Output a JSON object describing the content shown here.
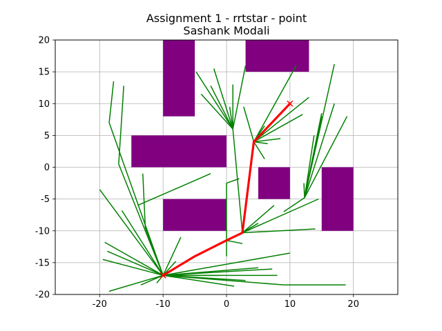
{
  "chart_data": {
    "type": "line",
    "title": "Assignment 1 - rrtstar - point",
    "subtitle": "Sashank Modali",
    "xlim": [
      -27,
      27
    ],
    "ylim": [
      -20,
      20
    ],
    "x_ticks": [
      -20,
      -10,
      0,
      10,
      20
    ],
    "y_ticks": [
      -20,
      -15,
      -10,
      -5,
      0,
      5,
      10,
      15,
      20
    ],
    "grid": true,
    "colors": {
      "obstacle": "#800080",
      "tree": "#008000",
      "path": "#ff0000",
      "grid": "#b0b0b0"
    },
    "obstacles": [
      {
        "x": [
          -10,
          -5
        ],
        "y": [
          8,
          20
        ]
      },
      {
        "x": [
          -15,
          0
        ],
        "y": [
          0,
          5
        ]
      },
      {
        "x": [
          -10,
          0
        ],
        "y": [
          -10,
          -5
        ]
      },
      {
        "x": [
          3,
          13
        ],
        "y": [
          15,
          20
        ]
      },
      {
        "x": [
          5,
          10
        ],
        "y": [
          -5,
          0
        ]
      },
      {
        "x": [
          15,
          20
        ],
        "y": [
          -10,
          0
        ]
      }
    ],
    "start": {
      "x": -10,
      "y": -17
    },
    "goal": {
      "x": 10,
      "y": 10
    },
    "path": [
      [
        -10,
        -17
      ],
      [
        -5,
        -14
      ],
      [
        0,
        -11.5
      ],
      [
        2.5,
        -10.3
      ],
      [
        4.3,
        4
      ],
      [
        10,
        10
      ]
    ],
    "tree_edges": [
      [
        [
          -10,
          -17
        ],
        [
          -18.5,
          7
        ]
      ],
      [
        [
          -18.5,
          7
        ],
        [
          -17.8,
          13.5
        ]
      ],
      [
        [
          -10,
          -17
        ],
        [
          -17,
          0.5
        ]
      ],
      [
        [
          -17,
          0.5
        ],
        [
          -16.2,
          12.8
        ]
      ],
      [
        [
          -10,
          -17
        ],
        [
          -20,
          -3.5
        ]
      ],
      [
        [
          -10,
          -17
        ],
        [
          -19.2,
          -11.8
        ]
      ],
      [
        [
          -10,
          -17
        ],
        [
          -19.5,
          -14.5
        ]
      ],
      [
        [
          -10,
          -17
        ],
        [
          -18.8,
          -13.2
        ]
      ],
      [
        [
          -10,
          -17
        ],
        [
          -18.5,
          -19.5
        ]
      ],
      [
        [
          -10,
          -17
        ],
        [
          -16.5,
          -6.8
        ]
      ],
      [
        [
          -10,
          -17
        ],
        [
          -12.8,
          -9.5
        ]
      ],
      [
        [
          -12.8,
          -9.5
        ],
        [
          -13.2,
          -1
        ]
      ],
      [
        [
          -10,
          -17
        ],
        [
          -13.5,
          -18.5
        ]
      ],
      [
        [
          -10,
          -17
        ],
        [
          -11,
          -18.2
        ]
      ],
      [
        [
          -10,
          -17
        ],
        [
          -7.2,
          -11
        ]
      ],
      [
        [
          -10,
          -17
        ],
        [
          -8,
          -14.8
        ]
      ],
      [
        [
          -10,
          -17
        ],
        [
          -1,
          -17
        ]
      ],
      [
        [
          -10,
          -17
        ],
        [
          3,
          -17.8
        ]
      ],
      [
        [
          -10,
          -17
        ],
        [
          1.2,
          -18.7
        ]
      ],
      [
        [
          -10,
          -17
        ],
        [
          5,
          -15.8
        ]
      ],
      [
        [
          -10,
          -17
        ],
        [
          7.2,
          -16
        ]
      ],
      [
        [
          -10,
          -17
        ],
        [
          10,
          -13.5
        ]
      ],
      [
        [
          -10,
          -17
        ],
        [
          9,
          -18.5
        ]
      ],
      [
        [
          9,
          -18.5
        ],
        [
          18.8,
          -18.5
        ]
      ],
      [
        [
          -10,
          -17
        ],
        [
          8,
          -17
        ]
      ],
      [
        [
          -14,
          -6
        ],
        [
          -2.5,
          -1
        ]
      ],
      [
        [
          0,
          -11.5
        ],
        [
          0,
          -2.5
        ]
      ],
      [
        [
          0,
          -2.5
        ],
        [
          2,
          -1.8
        ]
      ],
      [
        [
          0,
          -11.5
        ],
        [
          0,
          -14
        ]
      ],
      [
        [
          2.5,
          -10.3
        ],
        [
          7.5,
          -6
        ]
      ],
      [
        [
          2.5,
          -10.3
        ],
        [
          14.5,
          -5
        ]
      ],
      [
        [
          2.5,
          -10.3
        ],
        [
          14,
          -9.7
        ]
      ],
      [
        [
          2.5,
          -10.3
        ],
        [
          5,
          -8.8
        ]
      ],
      [
        [
          0,
          -11.5
        ],
        [
          2.5,
          -12
        ]
      ],
      [
        [
          2.5,
          -10.3
        ],
        [
          1,
          6
        ]
      ],
      [
        [
          1,
          6
        ],
        [
          -4.8,
          15
        ]
      ],
      [
        [
          1,
          6
        ],
        [
          -2,
          15.5
        ]
      ],
      [
        [
          1,
          6
        ],
        [
          -4,
          11.5
        ]
      ],
      [
        [
          1,
          6
        ],
        [
          -2.5,
          12.8
        ]
      ],
      [
        [
          1,
          6
        ],
        [
          0.5,
          9.5
        ]
      ],
      [
        [
          1,
          6
        ],
        [
          1,
          13
        ]
      ],
      [
        [
          1,
          6
        ],
        [
          3,
          16
        ]
      ],
      [
        [
          4.3,
          4
        ],
        [
          6,
          1.3
        ]
      ],
      [
        [
          4.3,
          4
        ],
        [
          2.7,
          9.5
        ]
      ],
      [
        [
          4.3,
          4
        ],
        [
          11,
          16
        ]
      ],
      [
        [
          4.3,
          4
        ],
        [
          8.5,
          4.5
        ]
      ],
      [
        [
          4.3,
          4
        ],
        [
          12,
          8.3
        ]
      ],
      [
        [
          4.3,
          4
        ],
        [
          6.5,
          3.7
        ]
      ],
      [
        [
          4.3,
          4
        ],
        [
          13,
          11
        ]
      ],
      [
        [
          4.3,
          4
        ],
        [
          6,
          6.5
        ]
      ],
      [
        [
          12.3,
          -4.8
        ],
        [
          17,
          16.2
        ]
      ],
      [
        [
          12.3,
          -4.8
        ],
        [
          17,
          10
        ]
      ],
      [
        [
          12.3,
          -4.8
        ],
        [
          19,
          8
        ]
      ],
      [
        [
          12.3,
          -4.8
        ],
        [
          15,
          8.5
        ]
      ],
      [
        [
          12.3,
          -4.8
        ],
        [
          13.8,
          5
        ]
      ],
      [
        [
          12.3,
          -4.8
        ],
        [
          12.2,
          -2.5
        ]
      ],
      [
        [
          12.3,
          -4.8
        ],
        [
          15,
          8
        ]
      ],
      [
        [
          12.3,
          -4.8
        ],
        [
          9,
          -7
        ]
      ]
    ]
  }
}
